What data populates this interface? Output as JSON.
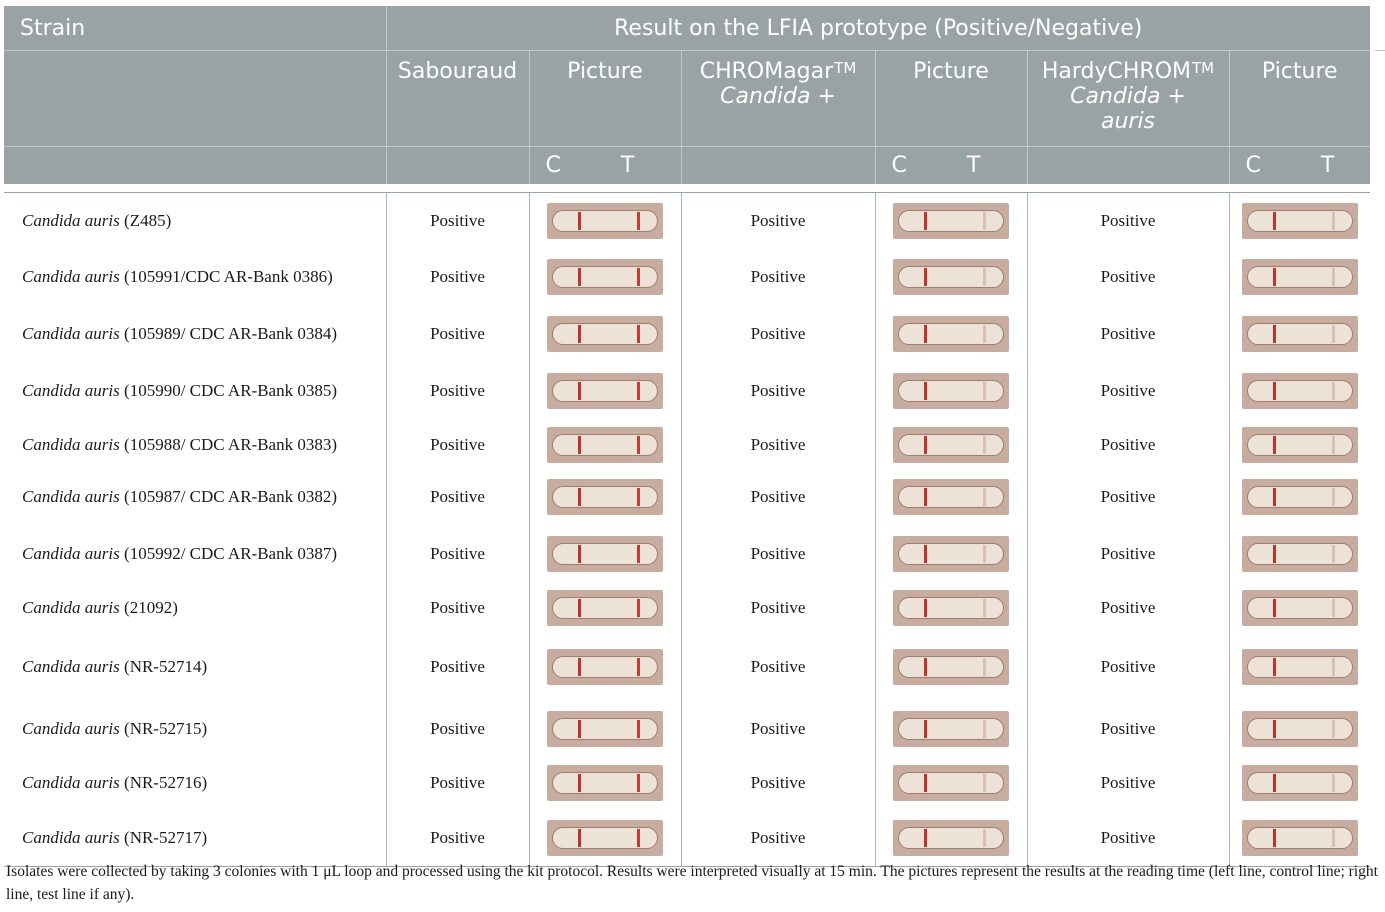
{
  "header": {
    "strain_label": "Strain",
    "result_label": "Result on the LFIA prototype (Positive/Negative)",
    "col_sabouraud": "Sabouraud",
    "col_picture": "Picture",
    "col_chromagar": "CHROMagar",
    "col_chromagar_tm": "TM",
    "col_chromagar_line2": "Candida +",
    "col_hardychrom": "HardyCHROM",
    "col_hardychrom_tm": "TM",
    "col_hardychrom_line2": "Candida +",
    "col_hardychrom_line3": "auris",
    "c_label": "C",
    "t_label": "T"
  },
  "rows": [
    {
      "species": "Candida auris",
      "id": " (Z485)",
      "sabouraud": "Positive",
      "chromagar": "Positive",
      "hardychrom": "Positive"
    },
    {
      "species": "Candida auris",
      "id": " (105991/CDC AR-Bank 0386)",
      "sabouraud": "Positive",
      "chromagar": "Positive",
      "hardychrom": "Positive"
    },
    {
      "species": "Candida auris",
      "id": " (105989/ CDC AR-Bank 0384)",
      "sabouraud": "Positive",
      "chromagar": "Positive",
      "hardychrom": "Positive"
    },
    {
      "species": "Candida auris",
      "id": " (105990/ CDC AR-Bank 0385)",
      "sabouraud": "Positive",
      "chromagar": "Positive",
      "hardychrom": "Positive"
    },
    {
      "species": "Candida auris",
      "id": " (105988/ CDC AR-Bank 0383)",
      "sabouraud": "Positive",
      "chromagar": "Positive",
      "hardychrom": "Positive"
    },
    {
      "species": "Candida auris",
      "id": " (105987/ CDC AR-Bank 0382)",
      "sabouraud": "Positive",
      "chromagar": "Positive",
      "hardychrom": "Positive"
    },
    {
      "species": "Candida auris",
      "id": " (105992/ CDC AR-Bank 0387)",
      "sabouraud": "Positive",
      "chromagar": "Positive",
      "hardychrom": "Positive"
    },
    {
      "species": "Candida auris",
      "id": " (21092)",
      "sabouraud": "Positive",
      "chromagar": "Positive",
      "hardychrom": "Positive"
    },
    {
      "species": "Candida auris",
      "id": " (NR-52714)",
      "sabouraud": "Positive",
      "chromagar": "Positive",
      "hardychrom": "Positive"
    },
    {
      "species": "Candida auris",
      "id": " (NR-52715)",
      "sabouraud": "Positive",
      "chromagar": "Positive",
      "hardychrom": "Positive"
    },
    {
      "species": "Candida auris",
      "id": " (NR-52716)",
      "sabouraud": "Positive",
      "chromagar": "Positive",
      "hardychrom": "Positive"
    },
    {
      "species": "Candida auris",
      "id": " (NR-52717)",
      "sabouraud": "Positive",
      "chromagar": "Positive",
      "hardychrom": "Positive"
    }
  ],
  "footnote": "Isolates were collected by taking 3 colonies with 1 μL loop and processed using the kit protocol. Results were interpreted visually at 15 min. The pictures represent the results at the reading time (left line, control line; right line, test line if any)."
}
